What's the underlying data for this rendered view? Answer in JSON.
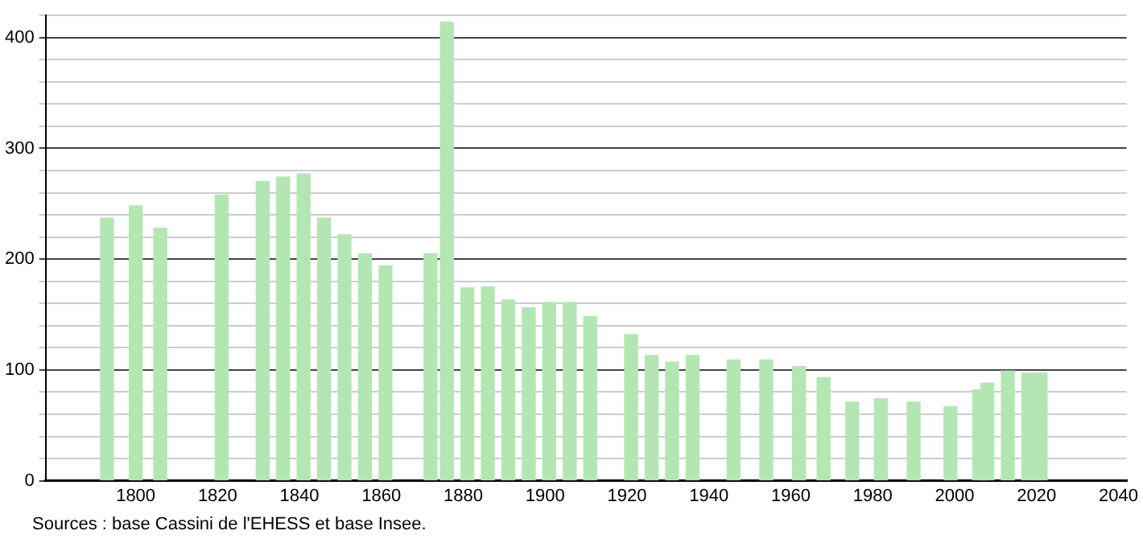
{
  "chart_data": {
    "type": "bar",
    "x": [
      1793,
      1800,
      1806,
      1821,
      1831,
      1836,
      1841,
      1846,
      1851,
      1856,
      1861,
      1872,
      1876,
      1881,
      1886,
      1891,
      1896,
      1901,
      1906,
      1911,
      1921,
      1926,
      1931,
      1936,
      1946,
      1954,
      1962,
      1968,
      1975,
      1982,
      1990,
      1999,
      2006,
      2008,
      2013,
      2018,
      2021
    ],
    "values": [
      237,
      248,
      228,
      258,
      270,
      274,
      277,
      237,
      222,
      205,
      194,
      205,
      414,
      174,
      175,
      163,
      156,
      161,
      161,
      148,
      132,
      113,
      107,
      113,
      109,
      109,
      103,
      93,
      71,
      74,
      71,
      67,
      82,
      88,
      99,
      97,
      97
    ],
    "color": "#b3e6b3",
    "xlim": [
      1778,
      2042
    ],
    "xticks": [
      1800,
      1820,
      1840,
      1860,
      1880,
      1900,
      1920,
      1940,
      1960,
      1980,
      2000,
      2020,
      2040
    ],
    "ylim": [
      0,
      420
    ],
    "yticks": [
      0,
      {
        "value": 20,
        "label": null
      },
      {
        "value": 40,
        "label": null
      },
      {
        "value": 60,
        "label": null
      },
      {
        "value": 80,
        "label": null
      },
      100,
      {
        "value": 120,
        "label": null
      },
      {
        "value": 140,
        "label": null
      },
      {
        "value": 160,
        "label": null
      },
      {
        "value": 180,
        "label": null
      },
      200,
      {
        "value": 220,
        "label": null
      },
      {
        "value": 240,
        "label": null
      },
      {
        "value": 260,
        "label": null
      },
      {
        "value": 280,
        "label": null
      },
      300,
      {
        "value": 320,
        "label": null
      },
      {
        "value": 340,
        "label": null
      },
      {
        "value": 360,
        "label": null
      },
      {
        "value": 380,
        "label": null
      },
      400,
      {
        "value": 420,
        "label": null
      }
    ],
    "grid": "y",
    "legend": false,
    "annotations": [
      "Sources : base Cassini de l'EHESS et base Insee."
    ]
  }
}
